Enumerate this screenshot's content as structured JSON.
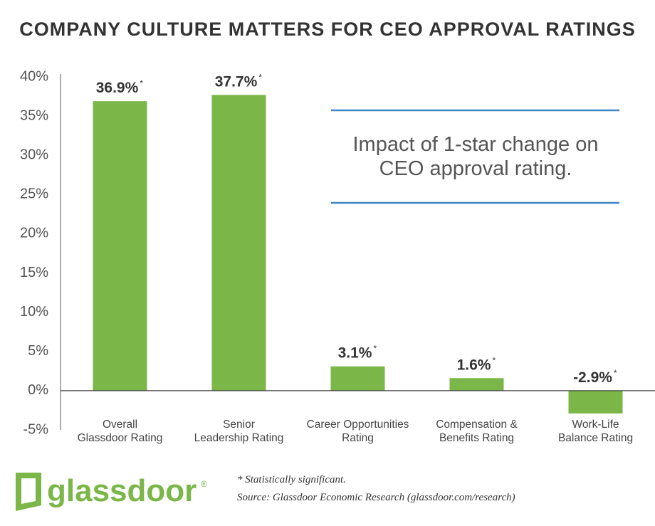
{
  "chart_data": {
    "type": "bar",
    "title": "COMPANY CULTURE MATTERS FOR CEO APPROVAL RATINGS",
    "categories": [
      "Overall\nGlassdoor Rating",
      "Senior\nLeadership Rating",
      "Career Opportunities\nRating",
      "Compensation &\nBenefits Rating",
      "Work-Life\nBalance Rating"
    ],
    "values": [
      36.9,
      37.7,
      3.1,
      1.6,
      -2.9
    ],
    "value_labels": [
      "36.9%",
      "37.7%",
      "3.1%",
      "1.6%",
      "-2.9%"
    ],
    "significance_marks": [
      "*",
      "*",
      "*",
      "*",
      "*"
    ],
    "color": "#7ab648",
    "ylim": [
      -5,
      40
    ],
    "yticks": [
      {
        "value": -5,
        "label": "-5%"
      },
      {
        "value": 0,
        "label": "0%"
      },
      {
        "value": 5,
        "label": "5%"
      },
      {
        "value": 10,
        "label": "10%"
      },
      {
        "value": 15,
        "label": "15%"
      },
      {
        "value": 20,
        "label": "20%"
      },
      {
        "value": 25,
        "label": "25%"
      },
      {
        "value": 30,
        "label": "30%"
      },
      {
        "value": 35,
        "label": "35%"
      },
      {
        "value": 40,
        "label": "40%"
      }
    ],
    "grid": false,
    "annotation": "Impact of 1-star change on\nCEO approval rating.",
    "footnote": "* Statistically significant.",
    "source": "Source: Glassdoor Economic Research (glassdoor.com/research)",
    "logo": "glassdoor",
    "logo_mark": "®"
  }
}
